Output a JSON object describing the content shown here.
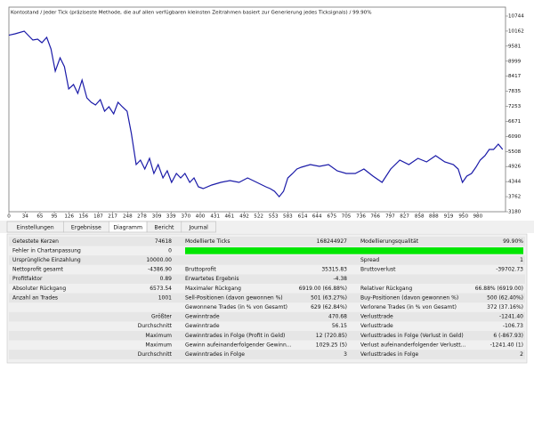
{
  "chart_data": {
    "type": "line",
    "title": "Kontostand / Jeder Tick (präziseste Methode, die auf allen verfügbaren kleinsten Zeitrahmen basiert zur Generierung jedes Ticksignals) / 99.90%",
    "color": "#1a1aa8",
    "x": [
      0,
      13,
      32,
      41,
      50,
      60,
      69,
      79,
      88,
      97,
      107,
      116,
      125,
      135,
      144,
      153,
      163,
      172,
      181,
      191,
      200,
      209,
      219,
      228,
      237,
      247,
      256,
      266,
      275,
      284,
      294,
      303,
      312,
      322,
      331,
      340,
      350,
      359,
      368,
      378,
      387,
      396,
      406,
      424,
      443,
      462,
      481,
      499,
      518,
      537,
      546,
      555,
      565,
      574,
      583,
      593,
      602,
      611,
      630,
      649,
      668,
      686,
      705,
      724,
      742,
      761,
      780,
      798,
      817,
      836,
      855,
      873,
      892,
      911,
      929,
      939,
      948,
      957,
      967,
      976,
      985,
      995,
      1004,
      1013,
      1023,
      1032
    ],
    "values": [
      10000,
      10056,
      10160,
      9988,
      9816,
      9850,
      9713,
      9919,
      9472,
      8612,
      9128,
      8784,
      7925,
      8097,
      7753,
      8269,
      7581,
      7409,
      7306,
      7512,
      7065,
      7237,
      6962,
      7409,
      7237,
      7065,
      6206,
      5003,
      5174,
      4831,
      5243,
      4659,
      5003,
      4487,
      4762,
      4315,
      4659,
      4487,
      4659,
      4315,
      4487,
      4143,
      4074,
      4212,
      4315,
      4384,
      4315,
      4487,
      4315,
      4143,
      4074,
      3971,
      3760,
      3971,
      4487,
      4659,
      4831,
      4899,
      5003,
      4934,
      5003,
      4762,
      4659,
      4659,
      4831,
      4556,
      4315,
      4831,
      5174,
      5003,
      5243,
      5106,
      5347,
      5106,
      5003,
      4831,
      4315,
      4556,
      4659,
      4899,
      5174,
      5347,
      5588,
      5588,
      5794,
      5588
    ],
    "xlim": [
      0,
      1038
    ],
    "xticks": [
      0,
      34,
      65,
      95,
      126,
      156,
      187,
      217,
      248,
      278,
      309,
      339,
      370,
      400,
      431,
      461,
      492,
      522,
      553,
      583,
      614,
      644,
      675,
      705,
      736,
      766,
      797,
      827,
      858,
      888,
      919,
      950,
      980
    ],
    "ylim": [
      3180,
      11088
    ],
    "yticks": [
      3180,
      3762,
      4344,
      4926,
      5508,
      6090,
      6671,
      7253,
      7835,
      8417,
      8999,
      9581,
      10162,
      10744
    ]
  },
  "tabs": [
    {
      "label": "Einstellungen"
    },
    {
      "label": "Ergebnisse"
    },
    {
      "label": "Diagramm",
      "active": true
    },
    {
      "label": "Bericht"
    },
    {
      "label": "Journal"
    }
  ],
  "report": {
    "rows": [
      {
        "left_label": "Getestete Kerzen",
        "left_value": "74618",
        "mid_label": "Modellierte Ticks",
        "mid_value": "168244927",
        "right_label": "Modellierungsqualität",
        "right_value": "99.90%"
      },
      {
        "left_label": "Fehler in Chartanpassung",
        "left_value": "0",
        "bar": true
      },
      {
        "left_label": "Ursprüngliche Einzahlung",
        "left_value": "10000.00",
        "right_label": "Spread",
        "right_value": "1"
      },
      {
        "left_label": "Nettoprofit gesamt",
        "left_value": "-4386.90",
        "mid_label": "Bruttoprofit",
        "mid_value": "35315.83",
        "right_label": "Bruttoverlust",
        "right_value": "-39702.73"
      },
      {
        "left_label": "Profitfaktor",
        "left_value": "0.89",
        "mid_label": "Erwartetes Ergebnis",
        "mid_value": "-4.38"
      },
      {
        "left_label": "Absoluter Rückgang",
        "left_value": "6573.54",
        "mid_label": "Maximaler Rückgang",
        "mid_value": "6919.00 (66.88%)",
        "right_label": "Relativer Rückgang",
        "right_value": "66.88% (6919.00)"
      },
      {
        "left_label": "Anzahl an Trades",
        "left_value": "1001",
        "mid_label": "Sell-Positionen (davon gewonnen %)",
        "mid_value": "501 (63.27%)",
        "right_label": "Buy-Positionen (davon gewonnen %)",
        "right_value": "500 (62.40%)"
      },
      {
        "mid_label": "Gewonnene Trades (in % von Gesamt)",
        "mid_value": "629 (62.84%)",
        "right_label": "Verlorene Trades (in % von Gesamt)",
        "right_value": "372 (37.16%)"
      },
      {
        "left_label": "Größter",
        "mid_label": "Gewinntrade",
        "mid_value": "470.68",
        "right_label": "Verlusttrade",
        "right_value": "-1241.40"
      },
      {
        "left_label": "Durchschnitt",
        "mid_label": "Gewinntrade",
        "mid_value": "56.15",
        "right_label": "Verlusttrade",
        "right_value": "-106.73"
      },
      {
        "left_label": "Maximum",
        "mid_label": "Gewinntrades in Folge (Profit in Geld)",
        "mid_value": "12 (720.85)",
        "right_label": "Verlusttrades in Folge (Verlust in Geld)",
        "right_value": "6 (-867.93)"
      },
      {
        "left_label": "Maximum",
        "mid_label": "Gewinn aufeinanderfolgender Gewinn...",
        "mid_value": "1029.25 (5)",
        "right_label": "Verlust aufeinanderfolgender Verlustt...",
        "right_value": "-1241.40 (1)"
      },
      {
        "left_label": "Durchschnitt",
        "mid_label": "Gewinntrades in Folge",
        "mid_value": "3",
        "right_label": "Verlusttrades in Folge",
        "right_value": "2"
      }
    ]
  }
}
